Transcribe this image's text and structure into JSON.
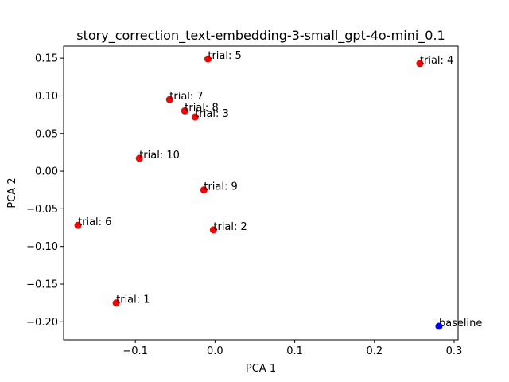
{
  "chart_data": {
    "type": "scatter",
    "title": "story_correction_text-embedding-3-small_gpt-4o-mini_0.1",
    "xlabel": "PCA 1",
    "ylabel": "PCA 2",
    "xlim": [
      -0.19,
      0.305
    ],
    "ylim": [
      -0.224,
      0.166
    ],
    "xticks": [
      -0.1,
      0.0,
      0.1,
      0.2,
      0.3
    ],
    "xtick_labels": [
      "−0.1",
      "0.0",
      "0.1",
      "0.2",
      "0.3"
    ],
    "yticks": [
      -0.2,
      -0.15,
      -0.1,
      -0.05,
      0.0,
      0.05,
      0.1,
      0.15
    ],
    "ytick_labels": [
      "−0.20",
      "−0.15",
      "−0.10",
      "−0.05",
      "0.00",
      "0.05",
      "0.10",
      "0.15"
    ],
    "grid": false,
    "colors": {
      "trial": "#ff0000",
      "baseline": "#0000ff"
    },
    "points": [
      {
        "label": "trial: 1",
        "x": -0.124,
        "y": -0.175,
        "color": "#ff0000"
      },
      {
        "label": "trial: 2",
        "x": -0.002,
        "y": -0.078,
        "color": "#ff0000"
      },
      {
        "label": "trial: 3",
        "x": -0.025,
        "y": 0.072,
        "color": "#ff0000"
      },
      {
        "label": "trial: 4",
        "x": 0.257,
        "y": 0.143,
        "color": "#ff0000"
      },
      {
        "label": "trial: 5",
        "x": -0.009,
        "y": 0.149,
        "color": "#ff0000"
      },
      {
        "label": "trial: 6",
        "x": -0.172,
        "y": -0.072,
        "color": "#ff0000"
      },
      {
        "label": "trial: 7",
        "x": -0.057,
        "y": 0.095,
        "color": "#ff0000"
      },
      {
        "label": "trial: 8",
        "x": -0.038,
        "y": 0.08,
        "color": "#ff0000"
      },
      {
        "label": "trial: 9",
        "x": -0.014,
        "y": -0.025,
        "color": "#ff0000"
      },
      {
        "label": "trial: 10",
        "x": -0.095,
        "y": 0.017,
        "color": "#ff0000"
      },
      {
        "label": "baseline",
        "x": 0.281,
        "y": -0.206,
        "color": "#0000ff"
      }
    ]
  }
}
